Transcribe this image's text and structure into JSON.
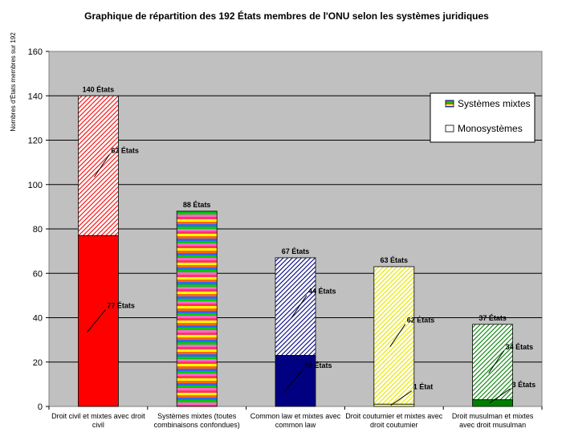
{
  "chart_data": {
    "type": "bar",
    "title": "Graphique de répartition des 192 États membres de l'ONU selon les systèmes juridiques",
    "xlabel": "",
    "ylabel": "Nombres d'États membres sur 192",
    "ylim": [
      0,
      160
    ],
    "yticks": [
      "0",
      "20",
      "40",
      "60",
      "80",
      "100",
      "120",
      "140",
      "160"
    ],
    "grid": true,
    "legend_position": "top-right",
    "categories": [
      [
        "Droit civil et mixtes avec droit",
        "civil"
      ],
      [
        "Systèmes mixtes (toutes",
        "combinaisons confondues)"
      ],
      [
        "Common law et mixtes avec",
        "common law"
      ],
      [
        "Droit coutumier et mixtes avec",
        "droit coutumier"
      ],
      [
        "Droit musulman et mixtes",
        "avec droit musulman"
      ]
    ],
    "series": [
      {
        "name": "Monosystèmes",
        "values": [
          77,
          0,
          23,
          1,
          3
        ]
      },
      {
        "name": "Systèmes mixtes",
        "values": [
          63,
          88,
          44,
          62,
          34
        ]
      }
    ],
    "colors": [
      "#ff0000",
      "#ff66cc",
      "#000080",
      "#ffff80",
      "#008000"
    ],
    "stripe_colors": [
      "#ff3366",
      "#ffff00",
      "#ff6600",
      "#3366ff",
      "#00cc00",
      "#ff66cc"
    ],
    "total_labels": [
      "140 États",
      "88 États",
      "67 États",
      "63 États",
      "37 États"
    ],
    "segment_labels": {
      "mixtes": [
        "63 États",
        "",
        "44 États",
        "62 États",
        "34 États"
      ],
      "mono": [
        "77 États",
        "",
        "23 États",
        "1 État",
        "3 États"
      ]
    },
    "legend": [
      "Systèmes mixtes",
      "Monosystèmes"
    ]
  }
}
